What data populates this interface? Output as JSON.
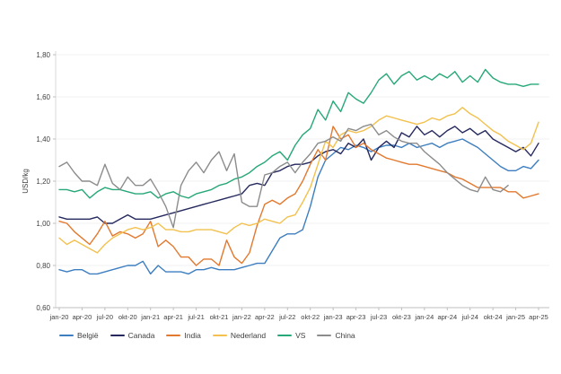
{
  "chart_data": {
    "type": "line",
    "title": "",
    "xlabel": "",
    "ylabel": "USD/kg",
    "ylim": [
      0.6,
      1.8
    ],
    "y_tick_labels": [
      "0,60",
      "0,80",
      "1,00",
      "1,20",
      "1,40",
      "1,60",
      "1,80"
    ],
    "y_tick_values": [
      0.6,
      0.8,
      1.0,
      1.2,
      1.4,
      1.6,
      1.8
    ],
    "grid": "horizontal",
    "legend_position": "bottom",
    "x_start": "jan-20",
    "x_interval": "monthly",
    "x_points": 64,
    "x_tick_step_months": 3,
    "x_tick_labels": [
      "jan-20",
      "apr-20",
      "jul-20",
      "okt-20",
      "jan-21",
      "apr-21",
      "jul-21",
      "okt-21",
      "jan-22",
      "apr-22",
      "jul-22",
      "okt-22",
      "jan-23",
      "apr-23",
      "jul-23",
      "okt-23",
      "jan-24",
      "apr-24",
      "jul-24",
      "okt-24",
      "jan-25",
      "apr-25"
    ],
    "series": [
      {
        "name": "België",
        "color": "#3c7ec0",
        "values": [
          0.78,
          0.77,
          0.78,
          0.78,
          0.76,
          0.76,
          0.77,
          0.78,
          0.79,
          0.8,
          0.8,
          0.82,
          0.76,
          0.8,
          0.77,
          0.77,
          0.77,
          0.76,
          0.78,
          0.78,
          0.79,
          0.78,
          0.78,
          0.78,
          0.79,
          0.8,
          0.81,
          0.81,
          0.87,
          0.93,
          0.95,
          0.95,
          0.97,
          1.08,
          1.22,
          1.3,
          1.33,
          1.36,
          1.35,
          1.37,
          1.36,
          1.34,
          1.36,
          1.37,
          1.37,
          1.36,
          1.38,
          1.36,
          1.37,
          1.38,
          1.36,
          1.38,
          1.39,
          1.4,
          1.38,
          1.36,
          1.33,
          1.3,
          1.27,
          1.25,
          1.25,
          1.27,
          1.26,
          1.3
        ]
      },
      {
        "name": "Canada",
        "color": "#25295e",
        "values": [
          1.03,
          1.02,
          1.02,
          1.02,
          1.02,
          1.03,
          1.0,
          1.0,
          1.02,
          1.04,
          1.02,
          1.02,
          1.02,
          1.03,
          1.04,
          1.05,
          1.06,
          1.07,
          1.08,
          1.09,
          1.1,
          1.11,
          1.12,
          1.13,
          1.14,
          1.18,
          1.19,
          1.18,
          1.24,
          1.25,
          1.27,
          1.28,
          1.28,
          1.29,
          1.32,
          1.34,
          1.35,
          1.33,
          1.38,
          1.36,
          1.4,
          1.3,
          1.36,
          1.39,
          1.36,
          1.43,
          1.41,
          1.46,
          1.42,
          1.44,
          1.41,
          1.44,
          1.46,
          1.43,
          1.45,
          1.42,
          1.44,
          1.4,
          1.38,
          1.36,
          1.34,
          1.36,
          1.32,
          1.38
        ]
      },
      {
        "name": "India",
        "color": "#e2792f",
        "values": [
          1.01,
          1.0,
          0.96,
          0.93,
          0.9,
          0.95,
          1.01,
          0.94,
          0.96,
          0.95,
          0.93,
          0.95,
          1.01,
          0.89,
          0.92,
          0.89,
          0.84,
          0.84,
          0.8,
          0.83,
          0.83,
          0.8,
          0.92,
          0.84,
          0.81,
          0.86,
          0.99,
          1.09,
          1.11,
          1.09,
          1.12,
          1.14,
          1.2,
          1.28,
          1.35,
          1.3,
          1.46,
          1.4,
          1.42,
          1.36,
          1.38,
          1.35,
          1.33,
          1.31,
          1.3,
          1.29,
          1.28,
          1.28,
          1.27,
          1.26,
          1.25,
          1.24,
          1.22,
          1.21,
          1.19,
          1.17,
          1.17,
          1.17,
          1.17,
          1.15,
          1.15,
          1.12,
          1.13,
          1.14
        ]
      },
      {
        "name": "Nederland",
        "color": "#f2c14e",
        "values": [
          0.93,
          0.9,
          0.92,
          0.9,
          0.88,
          0.86,
          0.9,
          0.93,
          0.95,
          0.97,
          0.98,
          0.97,
          0.98,
          1.0,
          0.97,
          0.97,
          0.96,
          0.96,
          0.97,
          0.97,
          0.97,
          0.96,
          0.95,
          0.98,
          1.0,
          0.99,
          1.0,
          1.02,
          1.01,
          1.0,
          1.03,
          1.04,
          1.1,
          1.17,
          1.28,
          1.39,
          1.36,
          1.42,
          1.44,
          1.43,
          1.44,
          1.46,
          1.49,
          1.51,
          1.5,
          1.49,
          1.48,
          1.47,
          1.48,
          1.5,
          1.49,
          1.51,
          1.52,
          1.55,
          1.52,
          1.5,
          1.47,
          1.44,
          1.42,
          1.39,
          1.37,
          1.35,
          1.38,
          1.48
        ]
      },
      {
        "name": "VS",
        "color": "#27a878",
        "values": [
          1.16,
          1.16,
          1.15,
          1.16,
          1.12,
          1.15,
          1.17,
          1.16,
          1.16,
          1.15,
          1.14,
          1.14,
          1.15,
          1.12,
          1.14,
          1.15,
          1.13,
          1.12,
          1.14,
          1.15,
          1.16,
          1.18,
          1.19,
          1.21,
          1.22,
          1.24,
          1.27,
          1.29,
          1.32,
          1.34,
          1.3,
          1.37,
          1.42,
          1.45,
          1.54,
          1.49,
          1.58,
          1.53,
          1.62,
          1.59,
          1.57,
          1.62,
          1.68,
          1.71,
          1.66,
          1.7,
          1.72,
          1.68,
          1.7,
          1.68,
          1.71,
          1.69,
          1.72,
          1.67,
          1.7,
          1.67,
          1.73,
          1.69,
          1.67,
          1.66,
          1.66,
          1.65,
          1.66,
          1.66
        ]
      },
      {
        "name": "China",
        "color": "#8c8c8c",
        "values": [
          1.27,
          1.29,
          1.24,
          1.2,
          1.2,
          1.18,
          1.28,
          1.19,
          1.16,
          1.22,
          1.18,
          1.18,
          1.21,
          1.15,
          1.08,
          0.98,
          1.18,
          1.25,
          1.29,
          1.24,
          1.3,
          1.34,
          1.25,
          1.33,
          1.1,
          1.08,
          1.08,
          1.23,
          1.24,
          1.27,
          1.29,
          1.24,
          1.29,
          1.33,
          1.38,
          1.39,
          1.41,
          1.39,
          1.45,
          1.44,
          1.46,
          1.47,
          1.42,
          1.44,
          1.41,
          1.39,
          1.38,
          1.38,
          1.34,
          1.31,
          1.28,
          1.24,
          1.21,
          1.18,
          1.16,
          1.15,
          1.22,
          1.16,
          1.15,
          1.18,
          null,
          null,
          null,
          null
        ]
      }
    ]
  }
}
